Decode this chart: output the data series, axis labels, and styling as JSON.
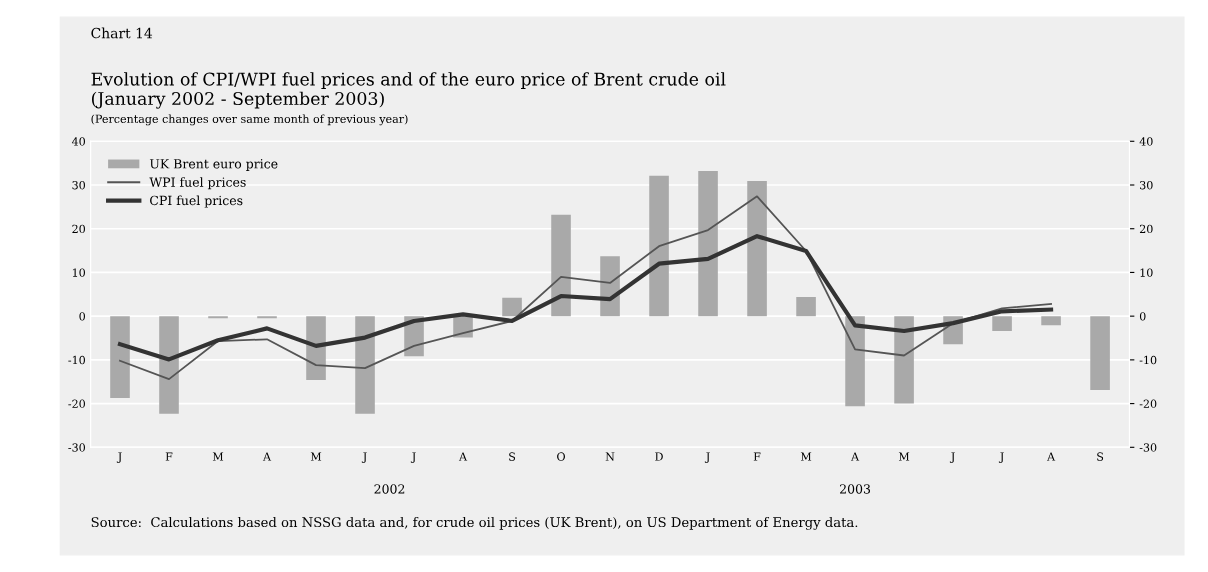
{
  "chart_data": {
    "type": "bar",
    "title": "Evolution of CPI/WPI fuel prices and of the euro price of Brent crude oil\n(January 2002 - September 2003)",
    "subtitle": "(Percentage changes over same month of previous year)",
    "categories": [
      "J",
      "F",
      "M",
      "A",
      "M",
      "J",
      "J",
      "A",
      "S",
      "O",
      "N",
      "D",
      "J",
      "F",
      "M",
      "A",
      "M",
      "J",
      "J",
      "A",
      "S"
    ],
    "series": [
      {
        "name": "UK Brent euro price",
        "color": "#a9a9a9",
        "values": [
          -18.7,
          -22.3,
          -0.5,
          -0.5,
          -14.6,
          -22.3,
          -9.2,
          -4.9,
          4.2,
          23.2,
          13.7,
          32.1,
          33.2,
          30.9,
          4.4,
          -20.6,
          -20.0,
          -6.4,
          -3.4,
          -2.1,
          -16.9
        ]
      },
      {
        "name": "WPI fuel prices",
        "type": "line",
        "color": "#555555",
        "values": [
          -10.2,
          -14.4,
          -5.7,
          -5.3,
          -11.2,
          -11.9,
          -6.8,
          -3.9,
          -1.1,
          9.0,
          7.6,
          16.0,
          19.7,
          27.4,
          14.9,
          -7.6,
          -9.0,
          -1.6,
          1.8,
          2.8,
          null
        ]
      },
      {
        "name": "CPI fuel prices",
        "type": "line",
        "color": "#333333",
        "values": [
          -6.4,
          -9.9,
          -5.5,
          -2.8,
          -6.8,
          -4.9,
          -1.1,
          0.4,
          -1.1,
          4.6,
          3.9,
          12.0,
          13.1,
          18.3,
          14.9,
          -2.1,
          -3.4,
          -1.6,
          1.1,
          1.5,
          null
        ]
      }
    ],
    "ylim": [
      -30,
      40
    ],
    "yticks": [
      -30,
      -20,
      -10,
      0,
      10,
      20,
      30,
      40
    ],
    "y2lim": [
      -30,
      40
    ],
    "y2ticks": [
      -30,
      -20,
      -10,
      0,
      10,
      20,
      30,
      40
    ],
    "grid": "y",
    "legend": "top left",
    "annotations": [
      "Chart 14",
      "2002",
      "2003",
      "Source:  Calculations based on NSSG data and, for crude oil prices (UK Brent), on US Department of Energy data."
    ]
  }
}
